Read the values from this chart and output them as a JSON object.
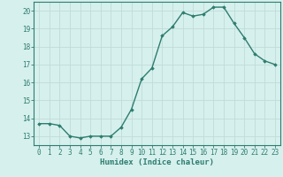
{
  "x": [
    0,
    1,
    2,
    3,
    4,
    5,
    6,
    7,
    8,
    9,
    10,
    11,
    12,
    13,
    14,
    15,
    16,
    17,
    18,
    19,
    20,
    21,
    22,
    23
  ],
  "y": [
    13.7,
    13.7,
    13.6,
    13.0,
    12.9,
    13.0,
    13.0,
    13.0,
    13.5,
    14.5,
    16.2,
    16.8,
    18.6,
    19.1,
    19.9,
    19.7,
    19.8,
    20.2,
    20.2,
    19.3,
    18.5,
    17.6,
    17.2,
    17.0
  ],
  "line_color": "#2e7d6e",
  "marker": "D",
  "marker_size": 1.8,
  "bg_color": "#d6f0ee",
  "grid_color": "#c0dbd8",
  "axis_color": "#2e7d6e",
  "xlabel": "Humidex (Indice chaleur)",
  "ylim": [
    12.5,
    20.5
  ],
  "xlim": [
    -0.5,
    23.5
  ],
  "yticks": [
    13,
    14,
    15,
    16,
    17,
    18,
    19,
    20
  ],
  "xticks": [
    0,
    1,
    2,
    3,
    4,
    5,
    6,
    7,
    8,
    9,
    10,
    11,
    12,
    13,
    14,
    15,
    16,
    17,
    18,
    19,
    20,
    21,
    22,
    23
  ],
  "font_color": "#2e7d6e",
  "tick_fontsize": 5.5,
  "xlabel_fontsize": 6.5,
  "linewidth": 1.0
}
